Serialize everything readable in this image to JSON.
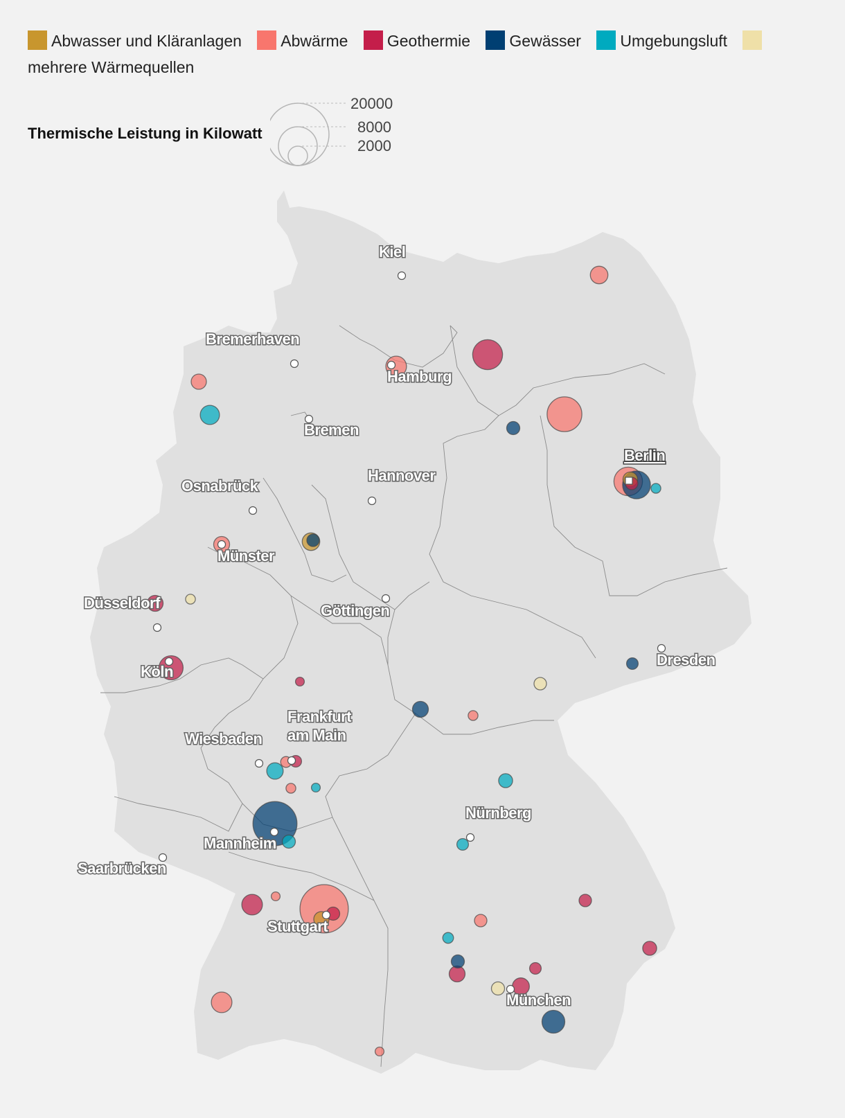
{
  "legend": {
    "items": [
      {
        "label": "Abwasser und Kläranlagen",
        "color": "#c8962e"
      },
      {
        "label": "Abwärme",
        "color": "#f8766d"
      },
      {
        "label": "Geothermie",
        "color": "#c41e4a"
      },
      {
        "label": "Gewässer",
        "color": "#003f72"
      },
      {
        "label": "Umgebungsluft",
        "color": "#00aabf"
      },
      {
        "label": "mehrere Wärmequellen",
        "color": "#efe0a8"
      }
    ]
  },
  "size_legend": {
    "title": "Thermische Leistung in Kilowatt",
    "values": [
      "20000",
      "8000",
      "2000"
    ]
  },
  "cities": [
    {
      "name": "Kiel",
      "lines": [
        "Kiel"
      ]
    },
    {
      "name": "Bremerhaven",
      "lines": [
        "Bremerhaven"
      ]
    },
    {
      "name": "Hamburg",
      "lines": [
        "Hamburg"
      ]
    },
    {
      "name": "Bremen",
      "lines": [
        "Bremen"
      ]
    },
    {
      "name": "Berlin",
      "lines": [
        "Berlin"
      ]
    },
    {
      "name": "Hannover",
      "lines": [
        "Hannover"
      ]
    },
    {
      "name": "Osnabrück",
      "lines": [
        "Osnabrück"
      ]
    },
    {
      "name": "Münster",
      "lines": [
        "Münster"
      ]
    },
    {
      "name": "Düsseldorf",
      "lines": [
        "Düsseldorf"
      ]
    },
    {
      "name": "Göttingen",
      "lines": [
        "Göttingen"
      ]
    },
    {
      "name": "Köln",
      "lines": [
        "Köln"
      ]
    },
    {
      "name": "Dresden",
      "lines": [
        "Dresden"
      ]
    },
    {
      "name": "Frankfurt am Main",
      "lines": [
        "Frankfurt",
        "am Main"
      ]
    },
    {
      "name": "Wiesbaden",
      "lines": [
        "Wiesbaden"
      ]
    },
    {
      "name": "Nürnberg",
      "lines": [
        "Nürnberg"
      ]
    },
    {
      "name": "Mannheim",
      "lines": [
        "Mannheim"
      ]
    },
    {
      "name": "Saarbrücken",
      "lines": [
        "Saarbrücken"
      ]
    },
    {
      "name": "Stuttgart",
      "lines": [
        "Stuttgart"
      ]
    },
    {
      "name": "München",
      "lines": [
        "München"
      ]
    }
  ],
  "chart_data": {
    "type": "proportional-symbol-map",
    "title": "Thermische Leistung in Kilowatt",
    "size_legend_kw": [
      20000,
      8000,
      2000
    ],
    "categories": [
      "Abwasser und Kläranlagen",
      "Abwärme",
      "Geothermie",
      "Gewässer",
      "Umgebungsluft",
      "mehrere Wärmequellen"
    ],
    "points": [
      {
        "near": "Rostock",
        "source": "Abwärme",
        "kw": 1600
      },
      {
        "near": "Schwerin",
        "source": "Geothermie",
        "kw": 4600
      },
      {
        "near": "Hamburg",
        "source": "Abwärme",
        "kw": 2200
      },
      {
        "near": "Ostfriesland",
        "source": "Abwärme",
        "kw": 1200
      },
      {
        "near": "Emsland",
        "source": "Umgebungsluft",
        "kw": 1900
      },
      {
        "near": "Prignitz",
        "source": "Abwärme",
        "kw": 6200
      },
      {
        "near": "Wittenberge",
        "source": "Gewässer",
        "kw": 900
      },
      {
        "near": "Berlin",
        "source": "Abwärme",
        "kw": 4200
      },
      {
        "near": "Berlin",
        "source": "Gewässer",
        "kw": 4000
      },
      {
        "near": "Berlin",
        "source": "Abwasser und Kläranlagen",
        "kw": 1100
      },
      {
        "near": "Berlin",
        "source": "Geothermie",
        "kw": 800
      },
      {
        "near": "Berlin",
        "source": "Umgebungsluft",
        "kw": 500
      },
      {
        "near": "Münster",
        "source": "Abwärme",
        "kw": 1300
      },
      {
        "near": "Bielefeld",
        "source": "Abwasser und Kläranlagen",
        "kw": 1600
      },
      {
        "near": "Bielefeld",
        "source": "Gewässer",
        "kw": 800
      },
      {
        "near": "Düsseldorf",
        "source": "Geothermie",
        "kw": 1300
      },
      {
        "near": "Duisburg",
        "source": "mehrere Wärmequellen",
        "kw": 500
      },
      {
        "near": "Köln",
        "source": "Geothermie",
        "kw": 3000
      },
      {
        "near": "Kassel",
        "source": "Geothermie",
        "kw": 400
      },
      {
        "near": "Dresden",
        "source": "Gewässer",
        "kw": 700
      },
      {
        "near": "Chemnitz",
        "source": "mehrere Wärmequellen",
        "kw": 800
      },
      {
        "near": "Erfurt",
        "source": "Gewässer",
        "kw": 1300
      },
      {
        "near": "Jena",
        "source": "Abwärme",
        "kw": 500
      },
      {
        "near": "Frankfurt am Main",
        "source": "Geothermie",
        "kw": 700
      },
      {
        "near": "Frankfurt am Main",
        "source": "Abwärme",
        "kw": 600
      },
      {
        "near": "Wiesbaden",
        "source": "Umgebungsluft",
        "kw": 1400
      },
      {
        "near": "Darmstadt",
        "source": "Abwärme",
        "kw": 500
      },
      {
        "near": "Aschaffenburg",
        "source": "Umgebungsluft",
        "kw": 400
      },
      {
        "near": "Bamberg",
        "source": "Umgebungsluft",
        "kw": 1000
      },
      {
        "near": "Mannheim",
        "source": "Gewässer",
        "kw": 10000
      },
      {
        "near": "Heidelberg",
        "source": "Umgebungsluft",
        "kw": 900
      },
      {
        "near": "Nürnberg",
        "source": "Umgebungsluft",
        "kw": 700
      },
      {
        "near": "Karlsruhe",
        "source": "Geothermie",
        "kw": 2200
      },
      {
        "near": "Pforzheim",
        "source": "Abwärme",
        "kw": 400
      },
      {
        "near": "Stuttgart",
        "source": "Abwärme",
        "kw": 12000
      },
      {
        "near": "Stuttgart",
        "source": "Abwasser und Kläranlagen",
        "kw": 1200
      },
      {
        "near": "Stuttgart",
        "source": "Geothermie",
        "kw": 900
      },
      {
        "near": "Regensburg",
        "source": "Geothermie",
        "kw": 800
      },
      {
        "near": "Ingolstadt",
        "source": "Abwärme",
        "kw": 800
      },
      {
        "near": "Ulm",
        "source": "Umgebungsluft",
        "kw": 600
      },
      {
        "near": "Augsburg",
        "source": "Gewässer",
        "kw": 900
      },
      {
        "near": "Augsburg",
        "source": "Geothermie",
        "kw": 1300
      },
      {
        "near": "München",
        "source": "mehrere Wärmequellen",
        "kw": 900
      },
      {
        "near": "München",
        "source": "Geothermie",
        "kw": 1500
      },
      {
        "near": "München",
        "source": "Geothermie",
        "kw": 700
      },
      {
        "near": "München",
        "source": "Gewässer",
        "kw": 2700
      },
      {
        "near": "Passau",
        "source": "Geothermie",
        "kw": 1000
      },
      {
        "near": "Freiburg",
        "source": "Abwärme",
        "kw": 2200
      },
      {
        "near": "Lörrach",
        "source": "Abwärme",
        "kw": 400
      }
    ]
  }
}
